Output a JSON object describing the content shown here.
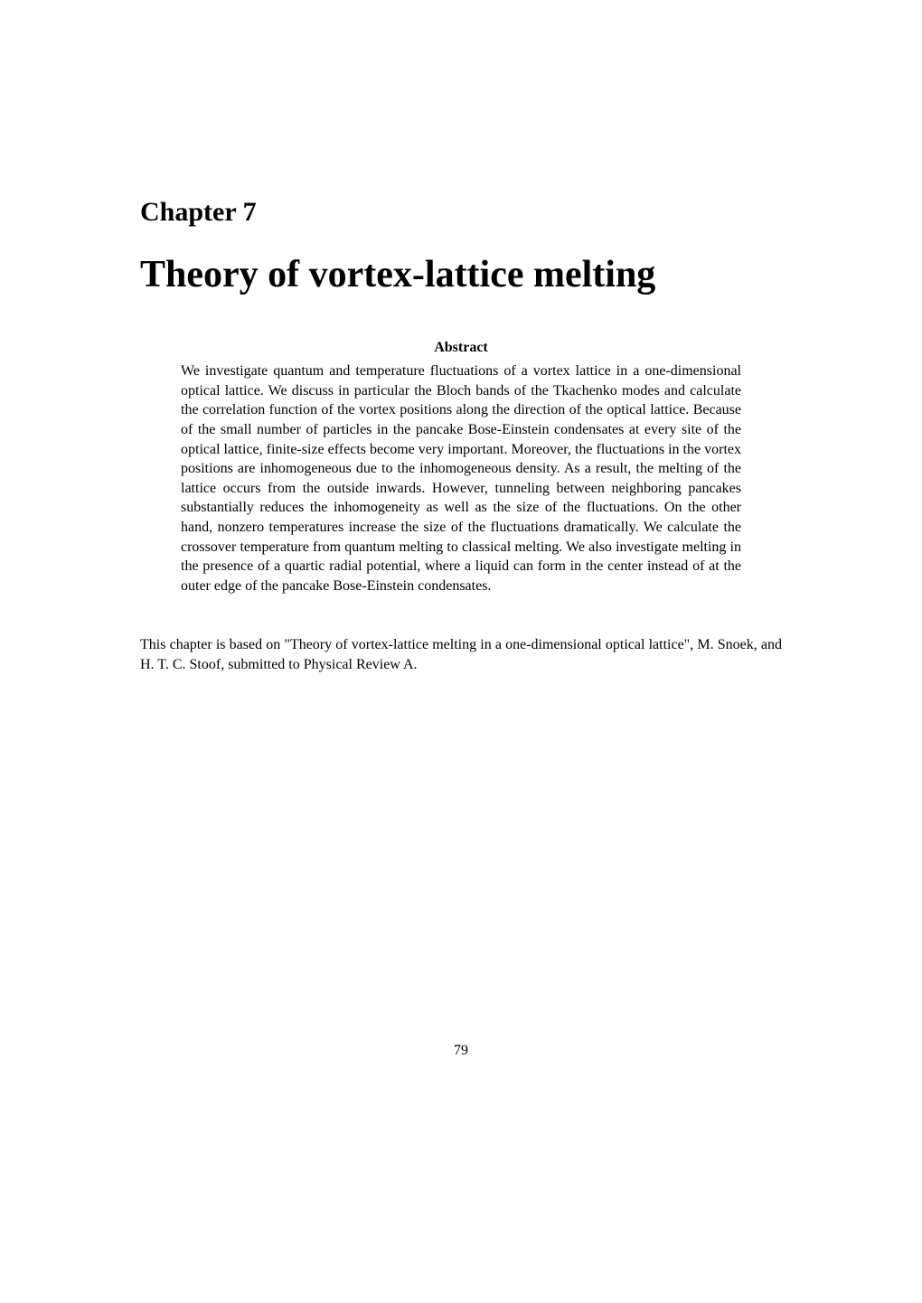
{
  "chapter": {
    "label": "Chapter 7",
    "title": "Theory of vortex-lattice melting"
  },
  "abstract": {
    "heading": "Abstract",
    "text": "We investigate quantum and temperature fluctuations of a vortex lattice in a one-dimensional optical lattice. We discuss in particular the Bloch bands of the Tkachenko modes and calculate the correlation function of the vortex positions along the direction of the optical lattice. Because of the small number of particles in the pancake Bose-Einstein condensates at every site of the optical lattice, finite-size effects become very important. Moreover, the fluctuations in the vortex positions are inhomogeneous due to the inhomogeneous density. As a result, the melting of the lattice occurs from the outside inwards. However, tunneling between neighboring pancakes substantially reduces the inhomogeneity as well as the size of the fluctuations. On the other hand, nonzero temperatures increase the size of the fluctuations dramatically. We calculate the crossover temperature from quantum melting to classical melting. We also investigate melting in the presence of a quartic radial potential, where a liquid can form in the center instead of at the outer edge of the pancake Bose-Einstein condensates."
  },
  "citation": {
    "text": "This chapter is based on \"Theory of vortex-lattice melting in a one-dimensional optical lattice\", M. Snoek, and H. T. C. Stoof, submitted to Physical Review A."
  },
  "page_number": "79",
  "styling": {
    "background_color": "#ffffff",
    "text_color": "#000000",
    "chapter_label_fontsize": 30,
    "chapter_title_fontsize": 42,
    "abstract_heading_fontsize": 16,
    "abstract_text_fontsize": 16,
    "citation_fontsize": 16,
    "page_number_fontsize": 16
  }
}
